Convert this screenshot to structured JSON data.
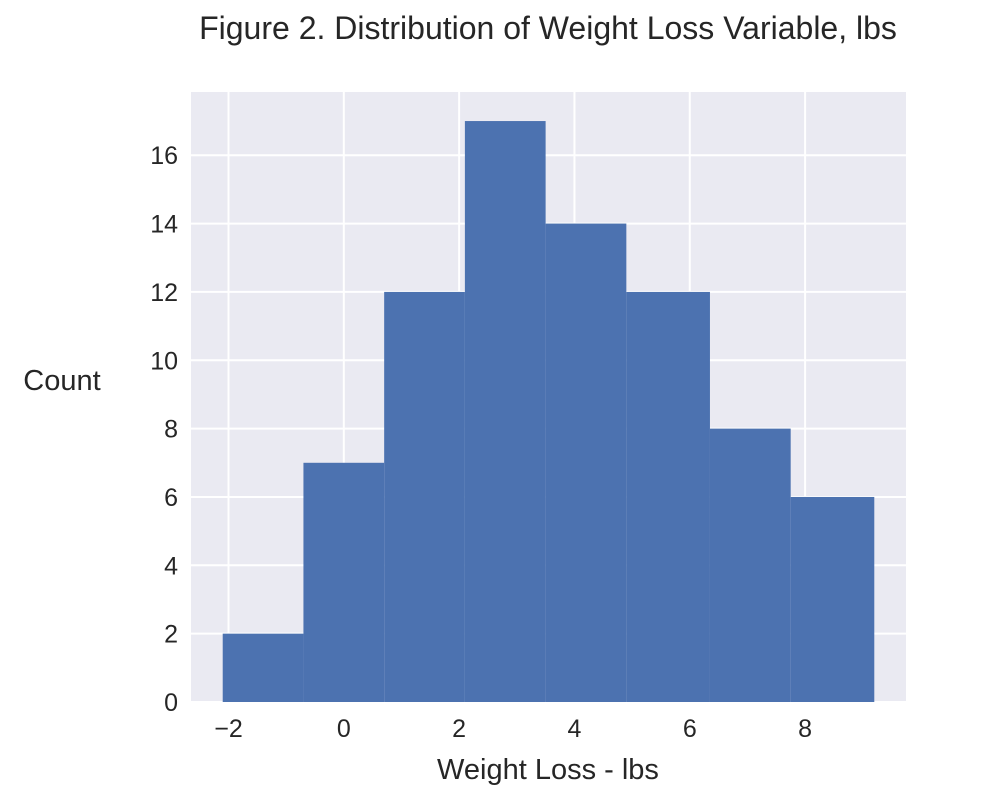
{
  "chart_data": {
    "type": "bar",
    "title": "Figure 2. Distribution of Weight Loss Variable, lbs",
    "xlabel": "Weight Loss - lbs",
    "ylabel": "Count",
    "bins": [
      {
        "start": -2.1,
        "end": -0.7,
        "count": 2
      },
      {
        "start": -0.7,
        "end": 0.7,
        "count": 7
      },
      {
        "start": 0.7,
        "end": 2.1,
        "count": 12
      },
      {
        "start": 2.1,
        "end": 3.5,
        "count": 17
      },
      {
        "start": 3.5,
        "end": 4.9,
        "count": 14
      },
      {
        "start": 4.9,
        "end": 6.35,
        "count": 12
      },
      {
        "start": 6.35,
        "end": 7.75,
        "count": 8
      },
      {
        "start": 7.75,
        "end": 9.2,
        "count": 6
      }
    ],
    "xlim": [
      -2.65,
      9.75
    ],
    "ylim": [
      0,
      17.85
    ],
    "xticks": [
      -2,
      0,
      2,
      4,
      6,
      8
    ],
    "xtick_labels": [
      "−2",
      "0",
      "2",
      "4",
      "6",
      "8"
    ],
    "yticks": [
      0,
      2,
      4,
      6,
      8,
      10,
      12,
      14,
      16
    ],
    "ytick_labels": [
      "0",
      "2",
      "4",
      "6",
      "8",
      "10",
      "12",
      "14",
      "16"
    ],
    "grid": true,
    "colors": {
      "bar": "#4c72b0",
      "background": "#eaeaf2",
      "grid": "#ffffff",
      "text": "#262626"
    }
  }
}
